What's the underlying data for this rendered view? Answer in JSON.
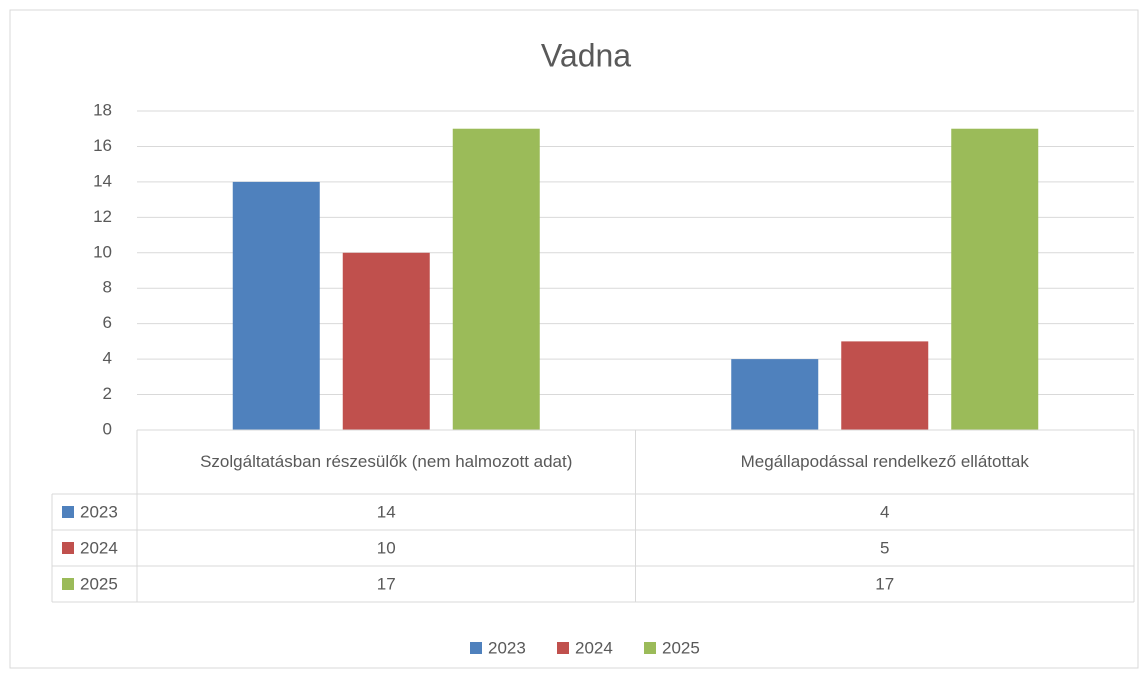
{
  "chart_data": {
    "type": "bar",
    "title": "Vadna",
    "categories": [
      "Szolgáltatásban részesülők (nem halmozott adat)",
      "Megállapodással rendelkező ellátottak"
    ],
    "series": [
      {
        "name": "2023",
        "color": "#4f81bd",
        "values": [
          14,
          4
        ]
      },
      {
        "name": "2024",
        "color": "#c0504d",
        "values": [
          10,
          5
        ]
      },
      {
        "name": "2025",
        "color": "#9bbb59",
        "values": [
          17,
          17
        ]
      }
    ],
    "ylim": [
      0,
      18
    ],
    "yticks": [
      0,
      2,
      4,
      6,
      8,
      10,
      12,
      14,
      16,
      18
    ],
    "grid": true,
    "legend": "bottom"
  }
}
